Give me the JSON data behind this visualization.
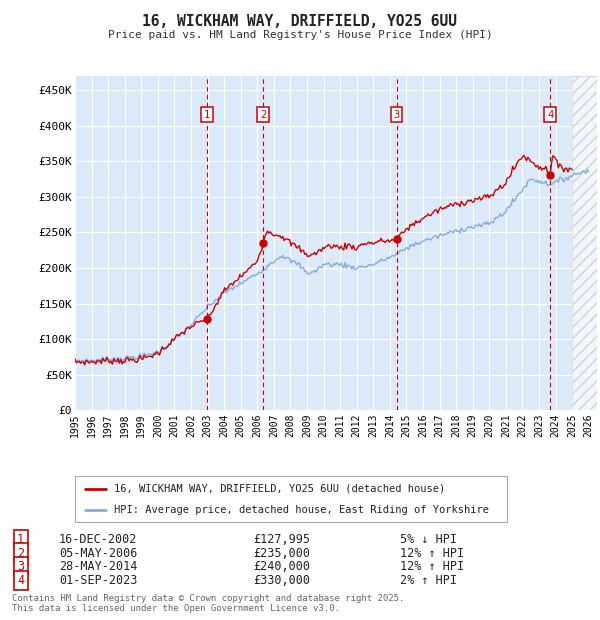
{
  "title": "16, WICKHAM WAY, DRIFFIELD, YO25 6UU",
  "subtitle": "Price paid vs. HM Land Registry's House Price Index (HPI)",
  "ylabel_ticks": [
    "£0",
    "£50K",
    "£100K",
    "£150K",
    "£200K",
    "£250K",
    "£300K",
    "£350K",
    "£400K",
    "£450K"
  ],
  "ytick_values": [
    0,
    50000,
    100000,
    150000,
    200000,
    250000,
    300000,
    350000,
    400000,
    450000
  ],
  "ylim": [
    0,
    470000
  ],
  "background_color": "#dce9f8",
  "grid_color": "#ffffff",
  "sale_color": "#cc0000",
  "hpi_color": "#88aadd",
  "legend_label_sale": "16, WICKHAM WAY, DRIFFIELD, YO25 6UU (detached house)",
  "legend_label_hpi": "HPI: Average price, detached house, East Riding of Yorkshire",
  "transactions": [
    {
      "num": 1,
      "date": "16-DEC-2002",
      "price": 127995,
      "pct": "5%",
      "dir": "↓",
      "year": 2002.96
    },
    {
      "num": 2,
      "date": "05-MAY-2006",
      "price": 235000,
      "pct": "12%",
      "dir": "↑",
      "year": 2006.35
    },
    {
      "num": 3,
      "date": "28-MAY-2014",
      "price": 240000,
      "pct": "12%",
      "dir": "↑",
      "year": 2014.41
    },
    {
      "num": 4,
      "date": "01-SEP-2023",
      "price": 330000,
      "pct": "2%",
      "dir": "↑",
      "year": 2023.67
    }
  ],
  "footer": "Contains HM Land Registry data © Crown copyright and database right 2025.\nThis data is licensed under the Open Government Licence v3.0.",
  "hatch_region_start": 2025.0,
  "xmin": 1995.0,
  "xmax": 2026.5
}
